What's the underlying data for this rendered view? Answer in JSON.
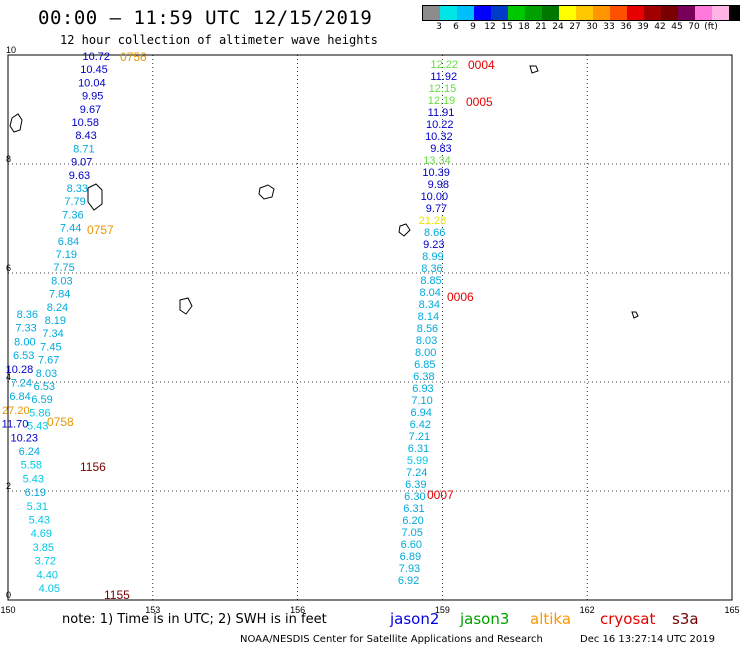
{
  "header": {
    "title": "00:00 – 11:59 UTC 12/15/2019",
    "subtitle": "12 hour collection of altimeter wave heights"
  },
  "colorbar": {
    "colors": [
      "#8c8c8c",
      "#00e6e6",
      "#00bfff",
      "#0000ff",
      "#003cc8",
      "#00c800",
      "#00a000",
      "#007800",
      "#ffff00",
      "#ffc800",
      "#ff9600",
      "#ff5000",
      "#e60000",
      "#a00000",
      "#780000",
      "#78005a",
      "#ff78dc",
      "#ffb4e6",
      "#000000"
    ],
    "labels": [
      "3",
      "6",
      "9",
      "12",
      "15",
      "18",
      "21",
      "24",
      "27",
      "30",
      "33",
      "36",
      "39",
      "42",
      "45",
      "70",
      "(ft)"
    ],
    "unit": "(ft)"
  },
  "axes": {
    "x_ticks": [
      "150",
      "153",
      "156",
      "159",
      "162",
      "165"
    ],
    "y_ticks": [
      "0",
      "2",
      "4",
      "6",
      "8",
      "10"
    ]
  },
  "tracks": [
    {
      "time": "0756",
      "time_color": "#e69600",
      "points": [
        {
          "v": "10.72",
          "c": "#0000c8"
        },
        {
          "v": "10.45",
          "c": "#0000c8"
        },
        {
          "v": "10.04",
          "c": "#0000c8"
        },
        {
          "v": "9.95",
          "c": "#0000c8"
        },
        {
          "v": "9.67",
          "c": "#0000c8"
        },
        {
          "v": "10.58",
          "c": "#0000c8"
        },
        {
          "v": "8.43",
          "c": "#0000c8"
        },
        {
          "v": "8.71",
          "c": "#00aadc"
        },
        {
          "v": "9.07",
          "c": "#0000c8"
        },
        {
          "v": "9.63",
          "c": "#0000c8"
        },
        {
          "v": "8.33",
          "c": "#00aadc"
        },
        {
          "v": "7.79",
          "c": "#00aadc"
        },
        {
          "v": "7.36",
          "c": "#00aadc"
        },
        {
          "v": "7.44",
          "c": "#00aadc"
        },
        {
          "v": "6.84",
          "c": "#00aadc"
        },
        {
          "v": "7.19",
          "c": "#00aadc"
        },
        {
          "v": "7.75",
          "c": "#00aadc"
        },
        {
          "v": "8.03",
          "c": "#00aadc"
        },
        {
          "v": "7.84",
          "c": "#00aadc"
        },
        {
          "v": "8.24",
          "c": "#00aadc"
        },
        {
          "v": "8.19",
          "c": "#00aadc"
        },
        {
          "v": "7.34",
          "c": "#00aadc"
        },
        {
          "v": "7.45",
          "c": "#00aadc"
        },
        {
          "v": "7.67",
          "c": "#00aadc"
        },
        {
          "v": "8.03",
          "c": "#00aadc"
        },
        {
          "v": "6.53",
          "c": "#00aadc"
        },
        {
          "v": "6.59",
          "c": "#00aadc"
        },
        {
          "v": "5.86",
          "c": "#00c8e6"
        },
        {
          "v": "5.43",
          "c": "#00c8e6"
        }
      ]
    },
    {
      "time": "0757",
      "time_color": "#e69600"
    },
    {
      "time": "0758",
      "time_color": "#e69600"
    },
    {
      "time": "1156",
      "time_color": "#780000"
    },
    {
      "time": "1155",
      "time_color": "#780000"
    },
    {
      "time": "0004",
      "time_color": "#e60000"
    },
    {
      "time": "0005",
      "time_color": "#e60000"
    },
    {
      "time": "0006",
      "time_color": "#e60000"
    },
    {
      "time": "0007",
      "time_color": "#e60000"
    }
  ],
  "left_track_b": [
    {
      "v": "8.36",
      "c": "#00aadc"
    },
    {
      "v": "7.33",
      "c": "#00aadc"
    },
    {
      "v": "8.00",
      "c": "#00aadc"
    },
    {
      "v": "6.53",
      "c": "#00aadc"
    },
    {
      "v": "10.28",
      "c": "#0000c8"
    },
    {
      "v": "7.24",
      "c": "#00aadc"
    },
    {
      "v": "6.84",
      "c": "#00aadc"
    },
    {
      "v": "27.20",
      "c": "#e69600"
    },
    {
      "v": "11.70",
      "c": "#0000c8"
    },
    {
      "v": "10.23",
      "c": "#0000c8"
    },
    {
      "v": "6.24",
      "c": "#00aadc"
    },
    {
      "v": "5.58",
      "c": "#00c8e6"
    },
    {
      "v": "5.43",
      "c": "#00c8e6"
    },
    {
      "v": "6.19",
      "c": "#00aadc"
    },
    {
      "v": "5.31",
      "c": "#00c8e6"
    },
    {
      "v": "5.43",
      "c": "#00c8e6"
    },
    {
      "v": "4.69",
      "c": "#00c8e6"
    },
    {
      "v": "3.85",
      "c": "#00c8e6"
    },
    {
      "v": "3.72",
      "c": "#00c8e6"
    },
    {
      "v": "4.40",
      "c": "#00c8e6"
    },
    {
      "v": "4.05",
      "c": "#00c8e6"
    }
  ],
  "right_track": [
    {
      "v": "12.22",
      "c": "#66dd44"
    },
    {
      "v": "11.92",
      "c": "#0000c8"
    },
    {
      "v": "12.15",
      "c": "#66dd44"
    },
    {
      "v": "12.19",
      "c": "#66dd44"
    },
    {
      "v": "11.91",
      "c": "#0000c8"
    },
    {
      "v": "10.22",
      "c": "#0000c8"
    },
    {
      "v": "10.32",
      "c": "#0000c8"
    },
    {
      "v": "9.83",
      "c": "#0000c8"
    },
    {
      "v": "13.34",
      "c": "#66dd44"
    },
    {
      "v": "10.39",
      "c": "#0000c8"
    },
    {
      "v": "9.98",
      "c": "#0000c8"
    },
    {
      "v": "10.00",
      "c": "#0000c8"
    },
    {
      "v": "9.77",
      "c": "#0000c8"
    },
    {
      "v": "21.28",
      "c": "#e6e600"
    },
    {
      "v": "8.66",
      "c": "#00aadc"
    },
    {
      "v": "9.23",
      "c": "#0000c8"
    },
    {
      "v": "8.99",
      "c": "#00aadc"
    },
    {
      "v": "8.36",
      "c": "#00aadc"
    },
    {
      "v": "8.85",
      "c": "#00aadc"
    },
    {
      "v": "8.04",
      "c": "#00aadc"
    },
    {
      "v": "8.34",
      "c": "#00aadc"
    },
    {
      "v": "8.14",
      "c": "#00aadc"
    },
    {
      "v": "8.56",
      "c": "#00aadc"
    },
    {
      "v": "8.03",
      "c": "#00aadc"
    },
    {
      "v": "8.00",
      "c": "#00aadc"
    },
    {
      "v": "6.85",
      "c": "#00aadc"
    },
    {
      "v": "6.38",
      "c": "#00aadc"
    },
    {
      "v": "6.93",
      "c": "#00aadc"
    },
    {
      "v": "7.10",
      "c": "#00aadc"
    },
    {
      "v": "6.94",
      "c": "#00aadc"
    },
    {
      "v": "6.42",
      "c": "#00aadc"
    },
    {
      "v": "7.21",
      "c": "#00aadc"
    },
    {
      "v": "6.31",
      "c": "#00aadc"
    },
    {
      "v": "5.99",
      "c": "#00c8e6"
    },
    {
      "v": "7.24",
      "c": "#00aadc"
    },
    {
      "v": "6.39",
      "c": "#00aadc"
    },
    {
      "v": "6.30",
      "c": "#00aadc"
    },
    {
      "v": "6.31",
      "c": "#00aadc"
    },
    {
      "v": "6.20",
      "c": "#00aadc"
    },
    {
      "v": "7.05",
      "c": "#00aadc"
    },
    {
      "v": "6.60",
      "c": "#00aadc"
    },
    {
      "v": "6.89",
      "c": "#00aadc"
    },
    {
      "v": "7.93",
      "c": "#00aadc"
    },
    {
      "v": "6.92",
      "c": "#00aadc"
    }
  ],
  "footer": {
    "note": "note: 1) Time is in UTC; 2) SWH is in feet",
    "legend": [
      {
        "name": "jason2",
        "color": "#0000e6"
      },
      {
        "name": "jason3",
        "color": "#00a000"
      },
      {
        "name": "altika",
        "color": "#ff9600"
      },
      {
        "name": "cryosat",
        "color": "#e60000"
      },
      {
        "name": "s3a",
        "color": "#780000"
      }
    ],
    "credit": "NOAA/NESDIS Center for Satellite Applications and Research",
    "stamp": "Dec 16 13:27:14 UTC 2019"
  }
}
